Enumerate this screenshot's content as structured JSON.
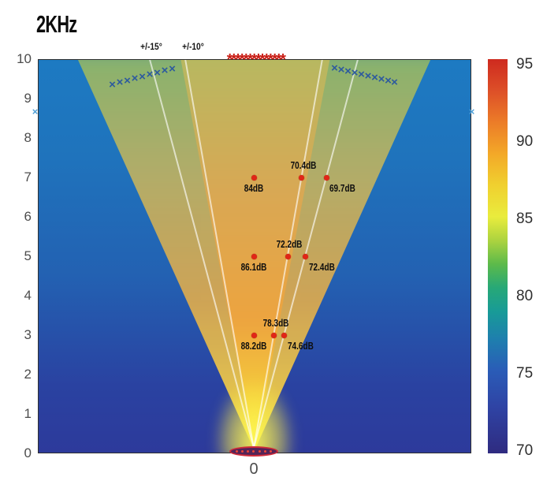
{
  "chart_data": {
    "type": "heatmap",
    "title": "2KHz",
    "x_axis": {
      "ticks": [
        "0"
      ]
    },
    "y_axis": {
      "ticks": [
        10,
        9,
        8,
        7,
        6,
        5,
        4,
        3,
        2,
        1,
        0
      ],
      "range": [
        0,
        10
      ]
    },
    "colorbar": {
      "ticks": [
        95,
        90,
        85,
        80,
        75,
        70
      ],
      "range": [
        70,
        95
      ],
      "colors_top_to_bottom": [
        "#ce2a1f",
        "#f3a828",
        "#e9ec3d",
        "#27a877",
        "#2a5cb7",
        "#2f2b80"
      ]
    },
    "angle_lines": {
      "labels": [
        "+/-15°",
        "+/-10°"
      ],
      "angles_deg": [
        15,
        10
      ],
      "color": "#ffffff"
    },
    "spl_points": [
      {
        "height_m": 7,
        "angle_deg": 0,
        "spl": "84dB",
        "label_pos": "below"
      },
      {
        "height_m": 7,
        "angle_deg": 10,
        "spl": "70.4dB",
        "label_pos": "above"
      },
      {
        "height_m": 7,
        "angle_deg": 15,
        "spl": "69.7dB",
        "label_pos": "below-right"
      },
      {
        "height_m": 5,
        "angle_deg": 0,
        "spl": "86.1dB",
        "label_pos": "below"
      },
      {
        "height_m": 5,
        "angle_deg": 10,
        "spl": "72.2dB",
        "label_pos": "above"
      },
      {
        "height_m": 5,
        "angle_deg": 15,
        "spl": "72.4dB",
        "label_pos": "below-right"
      },
      {
        "height_m": 3,
        "angle_deg": 0,
        "spl": "88.2dB",
        "label_pos": "below"
      },
      {
        "height_m": 3,
        "angle_deg": 10,
        "spl": "78.3dB",
        "label_pos": "above"
      },
      {
        "height_m": 3,
        "angle_deg": 15,
        "spl": "74.6dB",
        "label_pos": "below-right"
      }
    ],
    "spl_point_color": "#e02617",
    "star_row": {
      "symbol": "*",
      "count": 14,
      "color": "#c91d15",
      "y": 10
    },
    "x_markers": {
      "groups": [
        {
          "name": "left-chain",
          "color": "#2d5a9e",
          "size": 15,
          "points": [
            [
              -3.6,
              9.35
            ],
            [
              -3.41,
              9.4
            ],
            [
              -3.22,
              9.45
            ],
            [
              -3.03,
              9.5
            ],
            [
              -2.84,
              9.55
            ],
            [
              -2.65,
              9.6
            ],
            [
              -2.46,
              9.65
            ],
            [
              -2.27,
              9.7
            ],
            [
              -2.08,
              9.75
            ]
          ]
        },
        {
          "name": "right-chain",
          "color": "#2d5a9e",
          "size": 15,
          "points": [
            [
              2.04,
              9.76
            ],
            [
              2.21,
              9.72
            ],
            [
              2.38,
              9.68
            ],
            [
              2.55,
              9.64
            ],
            [
              2.72,
              9.6
            ],
            [
              2.89,
              9.56
            ],
            [
              3.06,
              9.52
            ],
            [
              3.23,
              9.48
            ],
            [
              3.4,
              9.44
            ],
            [
              3.56,
              9.4
            ]
          ]
        },
        {
          "name": "left-edge-marker",
          "color": "#4f9fd6",
          "size": 13,
          "points": [
            [
              -5.56,
              8.66
            ]
          ]
        },
        {
          "name": "right-edge-marker",
          "color": "#4f9fd6",
          "size": 13,
          "points": [
            [
              5.52,
              8.66
            ]
          ]
        }
      ]
    },
    "speaker_symbol": {
      "dot_count": 7,
      "border_color": "#cf2a3a",
      "fill_color": "#542457"
    }
  }
}
